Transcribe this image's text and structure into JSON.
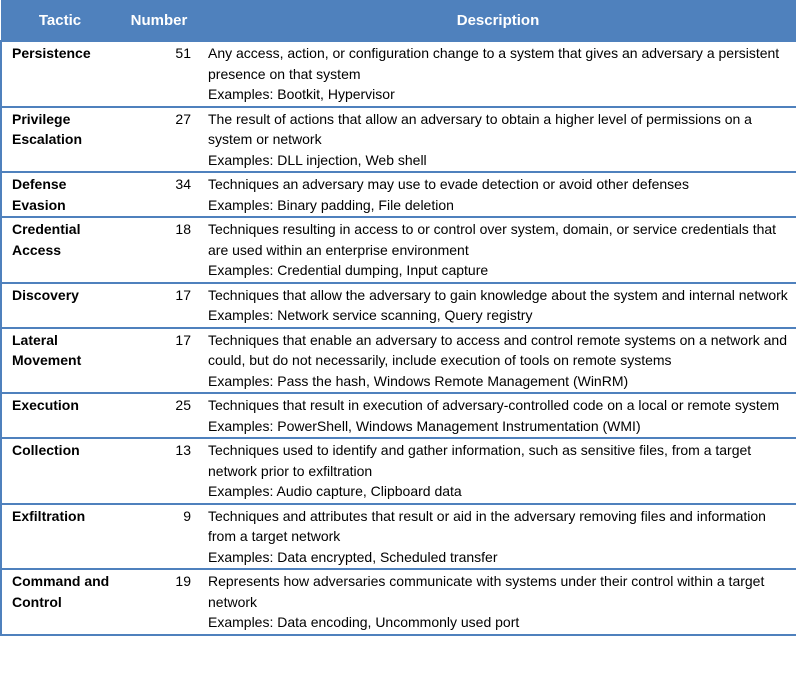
{
  "table": {
    "header": [
      "Tactic",
      "Number",
      "Description"
    ],
    "rows": [
      {
        "tactic": "Persistence",
        "number": 51,
        "description": "Any access, action, or configuration change to a system that gives an adversary a persistent presence on that system",
        "examples": "Examples: Bootkit, Hypervisor"
      },
      {
        "tactic": "Privilege Escalation",
        "number": 27,
        "description": "The result of actions that allow an adversary to obtain a higher level of permissions on a system or network",
        "examples": "Examples: DLL injection, Web shell"
      },
      {
        "tactic": "Defense Evasion",
        "number": 34,
        "description": "Techniques an adversary may use to evade detection or avoid other defenses",
        "examples": "Examples: Binary padding, File deletion"
      },
      {
        "tactic": "Credential Access",
        "number": 18,
        "description": "Techniques resulting in access to or control over system, domain, or service credentials that are used within an enterprise environment",
        "examples": "Examples: Credential dumping, Input capture"
      },
      {
        "tactic": "Discovery",
        "number": 17,
        "description": "Techniques that allow the adversary to gain knowledge about the system and internal network",
        "examples": "Examples: Network service scanning, Query registry"
      },
      {
        "tactic": "Lateral Movement",
        "number": 17,
        "description": "Techniques that enable an adversary to access and control remote systems on a network and could, but do not necessarily, include execution of tools on remote systems",
        "examples": "Examples: Pass the hash, Windows Remote Management (WinRM)"
      },
      {
        "tactic": "Execution",
        "number": 25,
        "description": "Techniques that result in execution of adversary-controlled code on a local or remote system",
        "examples": "Examples: PowerShell, Windows Management Instrumentation (WMI)"
      },
      {
        "tactic": "Collection",
        "number": 13,
        "description": "Techniques used to identify and gather information, such as sensitive files, from a target network prior to exfiltration",
        "examples": "Examples: Audio capture, Clipboard data"
      },
      {
        "tactic": "Exfiltration",
        "number": 9,
        "description": "Techniques and attributes that result or aid in the adversary removing files and information from a target network",
        "examples": "Examples: Data encrypted, Scheduled transfer"
      },
      {
        "tactic": "Command and Control",
        "number": 19,
        "description": "Represents how adversaries communicate with systems under their control within a target network",
        "examples": "Examples: Data encoding, Uncommonly used port"
      }
    ]
  }
}
